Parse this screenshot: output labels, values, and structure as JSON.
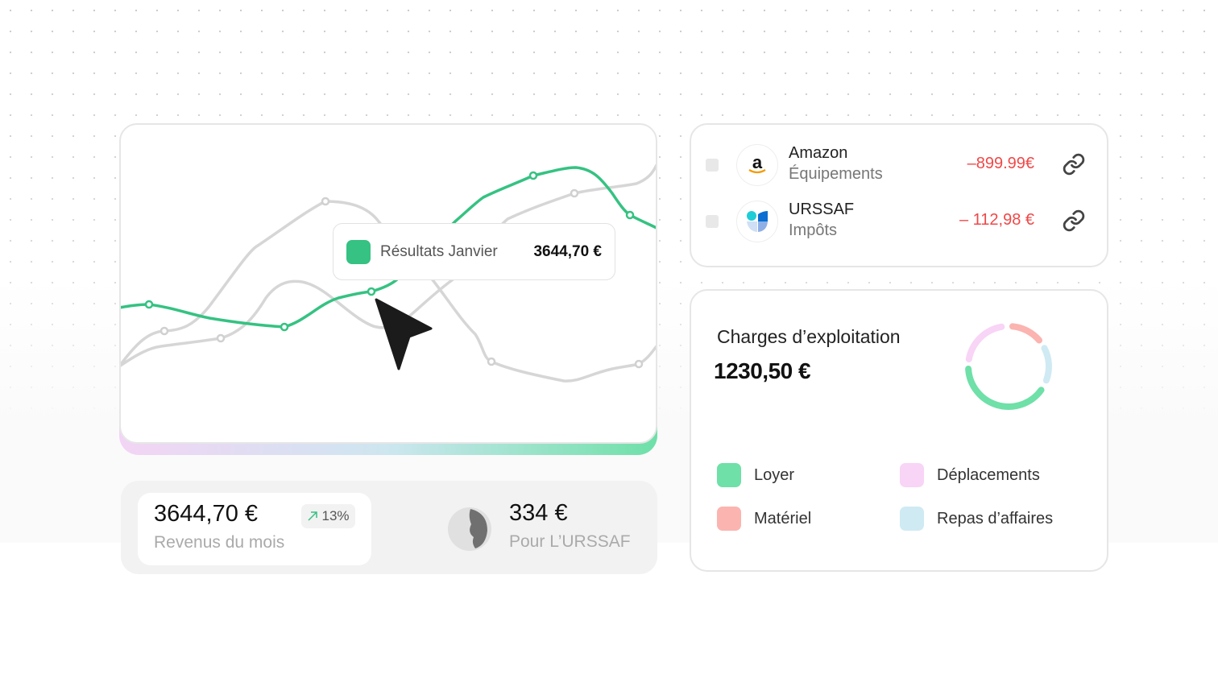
{
  "chart_card": {
    "tooltip": {
      "label": "Résultats Janvier",
      "value": "3644,70 €",
      "color": "#35c282"
    }
  },
  "transactions": [
    {
      "name": "Amazon",
      "category": "Équipements",
      "amount": "–899.99€",
      "logo": "amazon-logo",
      "action_icon": "link-icon"
    },
    {
      "name": "URSSAF",
      "category": "Impôts",
      "amount": "– 112,98 €",
      "logo": "urssaf-logo",
      "action_icon": "link-icon"
    }
  ],
  "charges": {
    "title": "Charges d’exploitation",
    "total": "1230,50 €",
    "legend": [
      {
        "label": "Loyer",
        "color": "#6ee0a8"
      },
      {
        "label": "Déplacements",
        "color": "#f8d4f6"
      },
      {
        "label": "Matériel",
        "color": "#fbb4b0"
      },
      {
        "label": "Repas d’affaires",
        "color": "#cfeaf3"
      }
    ]
  },
  "stats": {
    "revenue": {
      "amount": "3644,70 €",
      "label": "Revenus du mois",
      "change": "13%",
      "trend_icon": "arrow-up-right-icon"
    },
    "urssaf": {
      "amount": "334 €",
      "label": "Pour L’URSSAF"
    }
  },
  "colors": {
    "accent": "#35c282",
    "negative": "#f04848"
  }
}
